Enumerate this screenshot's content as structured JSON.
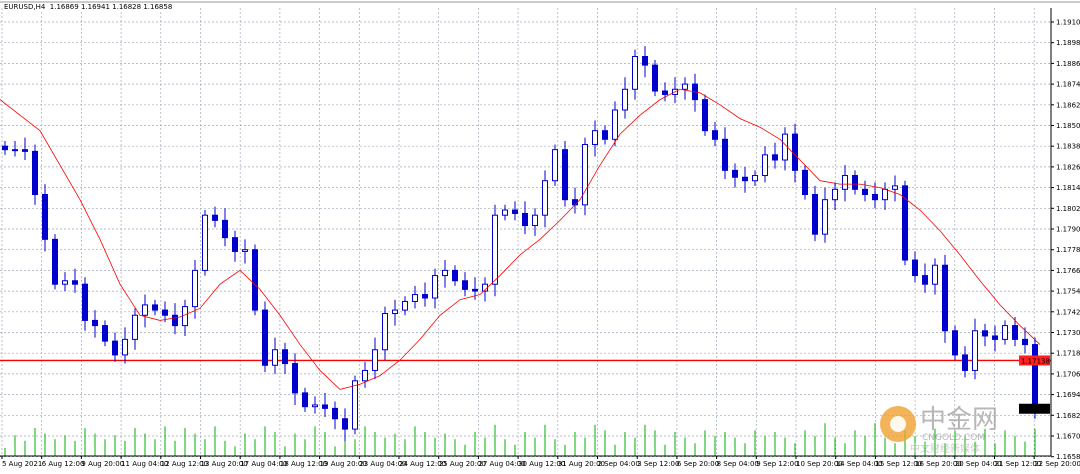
{
  "header": {
    "symbol": "EURUSD,H4",
    "open": "1.16869",
    "high": "1.16941",
    "low": "1.16828",
    "close": "1.16858"
  },
  "current_price_label": "1.16858",
  "hline_label": "1.17138",
  "watermark": {
    "cn": "中金网",
    "en": "CNGOLD.COM",
    "sub": "中文财经新媒体"
  },
  "colors": {
    "candle": "#0000cc",
    "ma": "#ff0000",
    "hline": "#ff0000",
    "volume": "#00b000",
    "grid": "#a0a8b8"
  },
  "chart_data": {
    "type": "candlestick",
    "title": "EURUSD,H4",
    "ylim": [
      1.1658,
      1.1922
    ],
    "grid": true,
    "y_ticks": [
      "1.19100",
      "1.18980",
      "1.18860",
      "1.18740",
      "1.18620",
      "1.18500",
      "1.18380",
      "1.18260",
      "1.18140",
      "1.18020",
      "1.17900",
      "1.17780",
      "1.17660",
      "1.17540",
      "1.17420",
      "1.17300",
      "1.17180",
      "1.17060",
      "1.16940",
      "1.16820",
      "1.16700",
      "1.16580"
    ],
    "x_ticks": [
      "5 Aug 2021",
      "6 Aug 12:00",
      "9 Aug 20:00",
      "11 Aug 04:00",
      "12 Aug 12:00",
      "13 Aug 20:00",
      "17 Aug 04:00",
      "18 Aug 12:00",
      "19 Aug 20:00",
      "23 Aug 04:00",
      "24 Aug 12:00",
      "25 Aug 20:00",
      "27 Aug 04:00",
      "30 Aug 12:00",
      "31 Aug 20:00",
      "2 Sep 04:00",
      "3 Sep 12:00",
      "6 Sep 20:00",
      "8 Sep 04:00",
      "9 Sep 12:00",
      "10 Sep 20:00",
      "14 Sep 04:00",
      "15 Sep 12:00",
      "16 Sep 20:00",
      "20 Sep 04:00",
      "21 Sep 12:00",
      "22 Sep 20:00"
    ],
    "closes": [
      1.1836,
      1.1836,
      1.1835,
      1.181,
      1.1784,
      1.1758,
      1.176,
      1.1758,
      1.1737,
      1.1734,
      1.1725,
      1.1717,
      1.1726,
      1.174,
      1.1746,
      1.1743,
      1.174,
      1.1734,
      1.1745,
      1.1766,
      1.1798,
      1.1795,
      1.1785,
      1.1777,
      1.1778,
      1.1743,
      1.1711,
      1.172,
      1.1712,
      1.1695,
      1.1687,
      1.1688,
      1.1686,
      1.168,
      1.1674,
      1.1702,
      1.1708,
      1.172,
      1.1741,
      1.1743,
      1.1748,
      1.1752,
      1.175,
      1.1763,
      1.1766,
      1.176,
      1.1755,
      1.1754,
      1.1758,
      1.1798,
      1.1801,
      1.1799,
      1.1792,
      1.1798,
      1.1818,
      1.1836,
      1.1807,
      1.1804,
      1.1839,
      1.1847,
      1.1842,
      1.1859,
      1.1871,
      1.189,
      1.1885,
      1.187,
      1.1868,
      1.1871,
      1.1874,
      1.1865,
      1.1847,
      1.1842,
      1.1824,
      1.182,
      1.1818,
      1.1821,
      1.1833,
      1.183,
      1.1845,
      1.1824,
      1.181,
      1.1787,
      1.1807,
      1.1813,
      1.1821,
      1.1813,
      1.181,
      1.1807,
      1.1813,
      1.1815,
      1.1772,
      1.1763,
      1.1758,
      1.1769,
      1.1731,
      1.1717,
      1.1708,
      1.1731,
      1.1728,
      1.1726,
      1.1734,
      1.1726,
      1.1723,
      1.1686
    ],
    "moving_average": [
      1.1865,
      1.1856,
      1.1847,
      1.1827,
      1.1807,
      1.1784,
      1.1758,
      1.174,
      1.1737,
      1.1739,
      1.1744,
      1.1758,
      1.1766,
      1.1755,
      1.174,
      1.1723,
      1.1708,
      1.1697,
      1.17,
      1.1705,
      1.1714,
      1.1726,
      1.174,
      1.1749,
      1.1752,
      1.1763,
      1.1775,
      1.1784,
      1.1795,
      1.1807,
      1.1827,
      1.1845,
      1.1856,
      1.1865,
      1.1871,
      1.1869,
      1.1862,
      1.1854,
      1.1849,
      1.1842,
      1.183,
      1.1818,
      1.1816,
      1.1816,
      1.1814,
      1.181,
      1.1801,
      1.1789,
      1.1775,
      1.176,
      1.1746,
      1.1734,
      1.1723
    ],
    "horizontal_line": 1.17138
  }
}
